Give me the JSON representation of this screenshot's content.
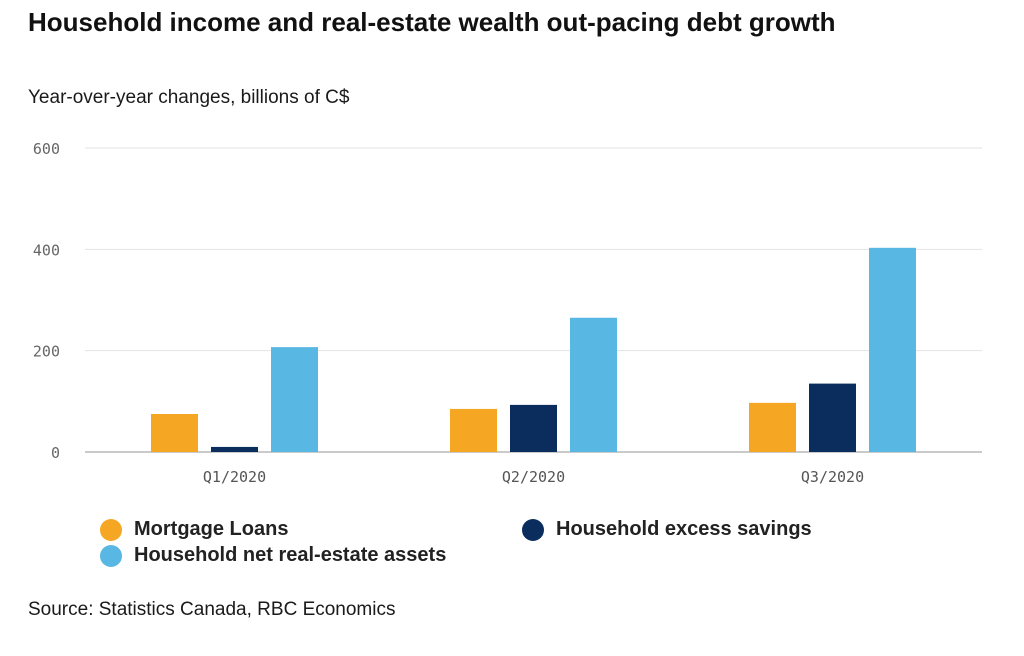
{
  "chart_data": {
    "type": "bar",
    "title": "Household income and real-estate wealth out-pacing debt growth",
    "subtitle": "Year-over-year changes, billions of C$",
    "categories": [
      "Q1/2020",
      "Q2/2020",
      "Q3/2020"
    ],
    "series": [
      {
        "name": "Mortgage Loans",
        "color": "#f5a623",
        "values": [
          75,
          85,
          97
        ]
      },
      {
        "name": "Household excess savings",
        "color": "#0a2d5e",
        "values": [
          10,
          93,
          135
        ]
      },
      {
        "name": "Household net real-estate assets",
        "color": "#58b7e3",
        "values": [
          207,
          265,
          403
        ]
      }
    ],
    "yticks": [
      0,
      200,
      400,
      600
    ],
    "ylim": [
      0,
      600
    ],
    "grid": true,
    "legend_position": "bottom",
    "source": "Source: Statistics Canada, RBC Economics"
  }
}
